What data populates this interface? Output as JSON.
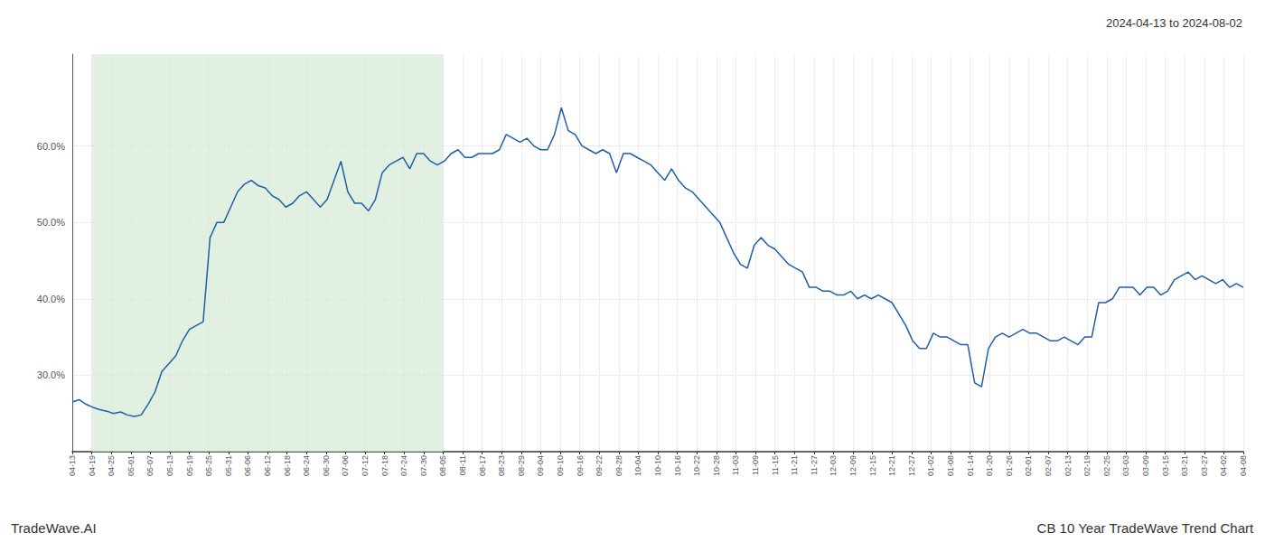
{
  "chart_data": {
    "type": "line",
    "title": "2024-04-13 to 2024-08-02",
    "annotations": [
      "TradeWave.AI",
      "CB 10 Year TradeWave Trend Chart"
    ],
    "color": "#1f5fa6",
    "grid": true,
    "spans": [
      {
        "xstart": 1,
        "xend": 19,
        "color": "#d6ead6"
      }
    ],
    "xlim": [
      0,
      60
    ],
    "xticks": [
      {
        "value": 0,
        "label": "04-13"
      },
      {
        "value": 1,
        "label": "04-19"
      },
      {
        "value": 2,
        "label": "04-25"
      },
      {
        "value": 3,
        "label": "05-01"
      },
      {
        "value": 4,
        "label": "05-07"
      },
      {
        "value": 5,
        "label": "05-13"
      },
      {
        "value": 6,
        "label": "05-19"
      },
      {
        "value": 7,
        "label": "05-25"
      },
      {
        "value": 8,
        "label": "05-31"
      },
      {
        "value": 9,
        "label": "06-06"
      },
      {
        "value": 10,
        "label": "06-12"
      },
      {
        "value": 11,
        "label": "06-18"
      },
      {
        "value": 12,
        "label": "06-24"
      },
      {
        "value": 13,
        "label": "06-30"
      },
      {
        "value": 14,
        "label": "07-06"
      },
      {
        "value": 15,
        "label": "07-12"
      },
      {
        "value": 16,
        "label": "07-18"
      },
      {
        "value": 17,
        "label": "07-24"
      },
      {
        "value": 18,
        "label": "07-30"
      },
      {
        "value": 19,
        "label": "08-05"
      },
      {
        "value": 20,
        "label": "08-11"
      },
      {
        "value": 21,
        "label": "08-17"
      },
      {
        "value": 22,
        "label": "08-23"
      },
      {
        "value": 23,
        "label": "08-29"
      },
      {
        "value": 24,
        "label": "09-04"
      },
      {
        "value": 25,
        "label": "09-10"
      },
      {
        "value": 26,
        "label": "09-16"
      },
      {
        "value": 27,
        "label": "09-22"
      },
      {
        "value": 28,
        "label": "09-28"
      },
      {
        "value": 29,
        "label": "10-04"
      },
      {
        "value": 30,
        "label": "10-10"
      },
      {
        "value": 31,
        "label": "10-16"
      },
      {
        "value": 32,
        "label": "10-22"
      },
      {
        "value": 33,
        "label": "10-28"
      },
      {
        "value": 34,
        "label": "11-03"
      },
      {
        "value": 35,
        "label": "11-09"
      },
      {
        "value": 36,
        "label": "11-15"
      },
      {
        "value": 37,
        "label": "11-21"
      },
      {
        "value": 38,
        "label": "11-27"
      },
      {
        "value": 39,
        "label": "12-03"
      },
      {
        "value": 40,
        "label": "12-09"
      },
      {
        "value": 41,
        "label": "12-15"
      },
      {
        "value": 42,
        "label": "12-21"
      },
      {
        "value": 43,
        "label": "12-27"
      },
      {
        "value": 44,
        "label": "01-02"
      },
      {
        "value": 45,
        "label": "01-08"
      },
      {
        "value": 46,
        "label": "01-14"
      },
      {
        "value": 47,
        "label": "01-20"
      },
      {
        "value": 48,
        "label": "01-26"
      },
      {
        "value": 49,
        "label": "02-01"
      },
      {
        "value": 50,
        "label": "02-07"
      },
      {
        "value": 51,
        "label": "02-13"
      },
      {
        "value": 52,
        "label": "02-19"
      },
      {
        "value": 53,
        "label": "02-25"
      },
      {
        "value": 54,
        "label": "03-03"
      },
      {
        "value": 55,
        "label": "03-09"
      },
      {
        "value": 56,
        "label": "03-15"
      },
      {
        "value": 57,
        "label": "03-21"
      },
      {
        "value": 58,
        "label": "03-27"
      },
      {
        "value": 59,
        "label": "04-02"
      },
      {
        "value": 60,
        "label": "04-08"
      }
    ],
    "ylim": [
      0.2,
      0.72
    ],
    "yticks": [
      {
        "value": 0.3,
        "label": "30.0%"
      },
      {
        "value": 0.4,
        "label": "40.0%"
      },
      {
        "value": 0.5,
        "label": "50.0%"
      },
      {
        "value": 0.6,
        "label": "60.0%"
      }
    ],
    "x": [
      0,
      0.3529,
      0.7059,
      1.0588,
      1.4118,
      1.7647,
      2.1176,
      2.4706,
      2.8235,
      3.1765,
      3.5294,
      3.8824,
      4.2353,
      4.5882,
      4.9412,
      5.2941,
      5.6471,
      6,
      6.3529,
      6.7059,
      7.0588,
      7.4118,
      7.7647,
      8.1176,
      8.4706,
      8.8235,
      9.1765,
      9.5294,
      9.8824,
      10.2353,
      10.5882,
      10.9412,
      11.2941,
      11.6471,
      12,
      12.3529,
      12.7059,
      13.0588,
      13.4118,
      13.7647,
      14.1176,
      14.4706,
      14.8235,
      15.1765,
      15.5294,
      15.8824,
      16.2353,
      16.5882,
      16.9412,
      17.2941,
      17.6471,
      18,
      18.3529,
      18.7059,
      19.0588,
      19.4118,
      19.7647,
      20.1176,
      20.4706,
      20.8235,
      21.1765,
      21.5294,
      21.8824,
      22.2353,
      22.5882,
      22.9412,
      23.2941,
      23.6471,
      24,
      24.3529,
      24.7059,
      25.0588,
      25.4118,
      25.7647,
      26.1176,
      26.4706,
      26.8235,
      27.1765,
      27.5294,
      27.8824,
      28.2353,
      28.5882,
      28.9412,
      29.2941,
      29.6471,
      30,
      30.3529,
      30.7059,
      31.0588,
      31.4118,
      31.7647,
      32.1176,
      32.4706,
      32.8235,
      33.1765,
      33.5294,
      33.8824,
      34.2353,
      34.5882,
      34.9412,
      35.2941,
      35.6471,
      36,
      36.3529,
      36.7059,
      37.0588,
      37.4118,
      37.7647,
      38.1176,
      38.4706,
      38.8235,
      39.1765,
      39.5294,
      39.8824,
      40.2353,
      40.5882,
      40.9412,
      41.2941,
      41.6471,
      42,
      42.3529,
      42.7059,
      43.0588,
      43.4118,
      43.7647,
      44.1176,
      44.4706,
      44.8235,
      45.1765,
      45.5294,
      45.8824,
      46.2353,
      46.5882,
      46.9412,
      47.2941,
      47.6471,
      48,
      48.3529,
      48.7059,
      49.0588,
      49.4118,
      49.7647,
      50.1176,
      50.4706,
      50.8235,
      51.1765,
      51.5294,
      51.8824,
      52.2353,
      52.5882,
      52.9412,
      53.2941,
      53.6471,
      54,
      54.3529,
      54.7059,
      55.0588,
      55.4118,
      55.7647,
      56.1176,
      56.4706,
      56.8235,
      57.1765,
      57.5294,
      57.8824,
      58.2353,
      58.5882,
      58.9412,
      59.2941,
      59.6471,
      60
    ],
    "values": [
      0.265,
      0.268,
      0.262,
      0.258,
      0.255,
      0.253,
      0.25,
      0.252,
      0.248,
      0.246,
      0.248,
      0.262,
      0.278,
      0.305,
      0.315,
      0.325,
      0.345,
      0.36,
      0.365,
      0.37,
      0.48,
      0.5,
      0.5,
      0.52,
      0.54,
      0.55,
      0.555,
      0.548,
      0.545,
      0.535,
      0.53,
      0.52,
      0.525,
      0.535,
      0.54,
      0.53,
      0.52,
      0.53,
      0.555,
      0.58,
      0.54,
      0.525,
      0.525,
      0.515,
      0.53,
      0.565,
      0.575,
      0.58,
      0.585,
      0.57,
      0.59,
      0.59,
      0.58,
      0.575,
      0.58,
      0.59,
      0.595,
      0.585,
      0.585,
      0.59,
      0.59,
      0.59,
      0.595,
      0.615,
      0.61,
      0.605,
      0.61,
      0.6,
      0.595,
      0.595,
      0.615,
      0.65,
      0.62,
      0.615,
      0.6,
      0.595,
      0.59,
      0.595,
      0.59,
      0.565,
      0.59,
      0.59,
      0.585,
      0.58,
      0.575,
      0.565,
      0.555,
      0.57,
      0.555,
      0.545,
      0.54,
      0.53,
      0.52,
      0.51,
      0.5,
      0.48,
      0.46,
      0.445,
      0.44,
      0.47,
      0.48,
      0.47,
      0.465,
      0.455,
      0.445,
      0.44,
      0.435,
      0.415,
      0.415,
      0.41,
      0.41,
      0.405,
      0.405,
      0.41,
      0.4,
      0.405,
      0.4,
      0.405,
      0.4,
      0.395,
      0.38,
      0.365,
      0.345,
      0.335,
      0.335,
      0.355,
      0.35,
      0.35,
      0.345,
      0.34,
      0.34,
      0.29,
      0.285,
      0.335,
      0.35,
      0.355,
      0.35,
      0.355,
      0.36,
      0.355,
      0.355,
      0.35,
      0.345,
      0.345,
      0.35,
      0.345,
      0.34,
      0.35,
      0.35,
      0.395,
      0.395,
      0.4,
      0.415,
      0.415,
      0.415,
      0.405,
      0.415,
      0.415,
      0.405,
      0.41,
      0.425,
      0.43,
      0.435,
      0.425,
      0.43,
      0.425,
      0.42,
      0.425,
      0.415,
      0.42,
      0.415
    ]
  }
}
